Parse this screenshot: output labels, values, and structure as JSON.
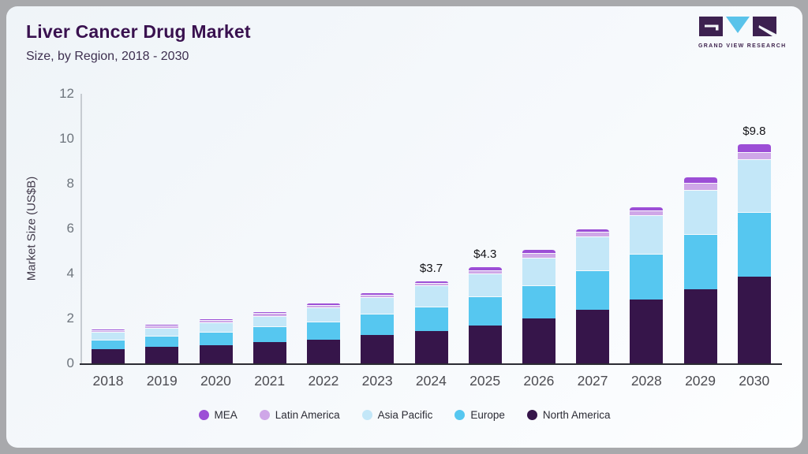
{
  "header": {
    "title": "Liver Cancer Drug Market",
    "subtitle": "Size, by Region, 2018 - 2030"
  },
  "logo": {
    "caption": "GRAND VIEW RESEARCH",
    "block_color": "#3d2150",
    "triangle_color": "#5ac3ea"
  },
  "chart_data": {
    "type": "bar",
    "stacked": true,
    "title": "Liver Cancer Drug Market Size, by Region, 2018 - 2030",
    "xlabel": "",
    "ylabel": "Market Size (US$B)",
    "ylim": [
      0,
      12
    ],
    "yticks": [
      0,
      2,
      4,
      6,
      8,
      10,
      12
    ],
    "grid": false,
    "legend_position": "bottom",
    "categories": [
      "2018",
      "2019",
      "2020",
      "2021",
      "2022",
      "2023",
      "2024",
      "2025",
      "2026",
      "2027",
      "2028",
      "2029",
      "2030"
    ],
    "series": [
      {
        "name": "North America",
        "color": "#36154a",
        "values": [
          0.63,
          0.72,
          0.8,
          0.95,
          1.07,
          1.25,
          1.45,
          1.7,
          2.0,
          2.4,
          2.85,
          3.3,
          3.85
        ]
      },
      {
        "name": "Europe",
        "color": "#56c7f0",
        "values": [
          0.43,
          0.5,
          0.6,
          0.7,
          0.8,
          0.95,
          1.08,
          1.27,
          1.48,
          1.75,
          2.03,
          2.45,
          2.9
        ]
      },
      {
        "name": "Asia Pacific",
        "color": "#c3e7f8",
        "values": [
          0.33,
          0.37,
          0.44,
          0.47,
          0.62,
          0.75,
          0.94,
          1.03,
          1.22,
          1.5,
          1.72,
          1.97,
          2.35
        ]
      },
      {
        "name": "Latin America",
        "color": "#cfa7e8",
        "values": [
          0.1,
          0.1,
          0.1,
          0.11,
          0.12,
          0.1,
          0.11,
          0.13,
          0.2,
          0.2,
          0.2,
          0.3,
          0.3
        ]
      },
      {
        "name": "MEA",
        "color": "#9c4ed6",
        "values": [
          0.06,
          0.06,
          0.06,
          0.07,
          0.09,
          0.1,
          0.12,
          0.17,
          0.2,
          0.15,
          0.2,
          0.28,
          0.4
        ]
      }
    ],
    "legend": [
      "MEA",
      "Latin America",
      "Asia Pacific",
      "Europe",
      "North America"
    ],
    "bar_total_labels": {
      "2024": "$3.7",
      "2025": "$4.3",
      "2030": "$9.8"
    }
  }
}
